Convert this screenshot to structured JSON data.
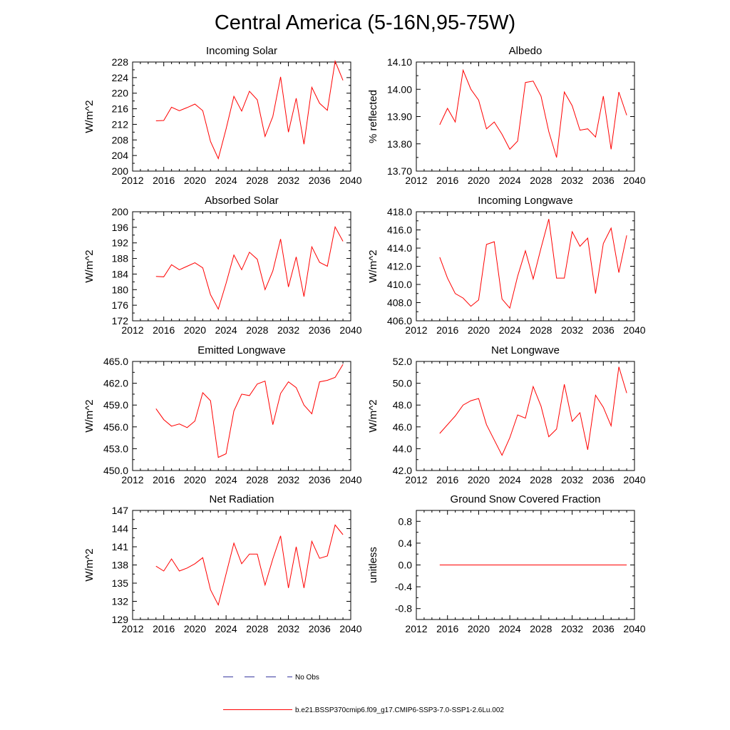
{
  "title": "Central America (5-16N,95-75W)",
  "colors": {
    "series": "#ff0000",
    "obs": "#3a3aa0",
    "axis": "#000000"
  },
  "legend": {
    "obs_label": "No Obs",
    "model_label": "b.e21.BSSP370cmip6.f09_g17.CMIP6-SSP3-7.0-SSP1-2.6Lu.002"
  },
  "chart_data": [
    {
      "id": "incoming-solar",
      "type": "line",
      "title": "Incoming Solar",
      "ylabel": "W/m^2",
      "xlim": [
        2012,
        2040
      ],
      "ylim": [
        200,
        228
      ],
      "xticks": [
        2012,
        2016,
        2020,
        2024,
        2028,
        2032,
        2036,
        2040
      ],
      "xtick_labels": [
        "2012",
        "2016",
        "2020",
        "2024",
        "2028",
        "2032",
        "2036",
        "2040"
      ],
      "yticks": [
        200,
        204,
        208,
        212,
        216,
        220,
        224,
        228
      ],
      "ytick_labels": [
        "200",
        "204",
        "208",
        "212",
        "216",
        "220",
        "224",
        "228"
      ],
      "x": [
        2015,
        2016,
        2017,
        2018,
        2019,
        2020,
        2021,
        2022,
        2023,
        2024,
        2025,
        2026,
        2027,
        2028,
        2029,
        2030,
        2031,
        2032,
        2033,
        2034,
        2035,
        2036,
        2037,
        2038,
        2039
      ],
      "values": [
        212.9,
        213.0,
        216.4,
        215.5,
        216.3,
        217.2,
        215.5,
        207.6,
        203.2,
        210.8,
        219.2,
        215.4,
        220.5,
        218.3,
        208.9,
        214.0,
        224.2,
        210.0,
        218.7,
        206.9,
        221.5,
        217.4,
        215.6,
        228.2,
        223.3
      ]
    },
    {
      "id": "albedo",
      "type": "line",
      "title": "Albedo",
      "ylabel": "% reflected",
      "xlim": [
        2012,
        2040
      ],
      "ylim": [
        13.7,
        14.1
      ],
      "xticks": [
        2012,
        2016,
        2020,
        2024,
        2028,
        2032,
        2036,
        2040
      ],
      "xtick_labels": [
        "2012",
        "2016",
        "2020",
        "2024",
        "2028",
        "2032",
        "2036",
        "2040"
      ],
      "yticks": [
        13.7,
        13.8,
        13.9,
        14.0,
        14.1
      ],
      "ytick_labels": [
        "13.70",
        "13.80",
        "13.90",
        "14.00",
        "14.10"
      ],
      "x": [
        2015,
        2016,
        2017,
        2018,
        2019,
        2020,
        2021,
        2022,
        2023,
        2024,
        2025,
        2026,
        2027,
        2028,
        2029,
        2030,
        2031,
        2032,
        2033,
        2034,
        2035,
        2036,
        2037,
        2038,
        2039
      ],
      "values": [
        13.87,
        13.93,
        13.88,
        14.07,
        14.0,
        13.96,
        13.855,
        13.88,
        13.835,
        13.78,
        13.81,
        14.025,
        14.03,
        13.975,
        13.845,
        13.75,
        13.99,
        13.94,
        13.85,
        13.855,
        13.825,
        13.975,
        13.78,
        13.99,
        13.905
      ]
    },
    {
      "id": "absorbed-solar",
      "type": "line",
      "title": "Absorbed Solar",
      "ylabel": "W/m^2",
      "xlim": [
        2012,
        2040
      ],
      "ylim": [
        172,
        200
      ],
      "xticks": [
        2012,
        2016,
        2020,
        2024,
        2028,
        2032,
        2036,
        2040
      ],
      "xtick_labels": [
        "2012",
        "2016",
        "2020",
        "2024",
        "2028",
        "2032",
        "2036",
        "2040"
      ],
      "yticks": [
        172,
        176,
        180,
        184,
        188,
        192,
        196,
        200
      ],
      "ytick_labels": [
        "172",
        "176",
        "180",
        "184",
        "188",
        "192",
        "196",
        "200"
      ],
      "x": [
        2015,
        2016,
        2017,
        2018,
        2019,
        2020,
        2021,
        2022,
        2023,
        2024,
        2025,
        2026,
        2027,
        2028,
        2029,
        2030,
        2031,
        2032,
        2033,
        2034,
        2035,
        2036,
        2037,
        2038,
        2039
      ],
      "values": [
        183.4,
        183.3,
        186.4,
        185.1,
        186.0,
        186.9,
        185.6,
        178.7,
        175.0,
        181.6,
        188.9,
        185.1,
        189.6,
        187.8,
        180.0,
        184.8,
        193.0,
        180.7,
        188.4,
        178.2,
        191.0,
        187.0,
        186.0,
        196.1,
        192.4
      ]
    },
    {
      "id": "incoming-longwave",
      "type": "line",
      "title": "Incoming Longwave",
      "ylabel": "W/m^2",
      "xlim": [
        2012,
        2040
      ],
      "ylim": [
        406,
        418
      ],
      "xticks": [
        2012,
        2016,
        2020,
        2024,
        2028,
        2032,
        2036,
        2040
      ],
      "xtick_labels": [
        "2012",
        "2016",
        "2020",
        "2024",
        "2028",
        "2032",
        "2036",
        "2040"
      ],
      "yticks": [
        406,
        408,
        410,
        412,
        414,
        416,
        418
      ],
      "ytick_labels": [
        "406.0",
        "408.0",
        "410.0",
        "412.0",
        "414.0",
        "416.0",
        "418.0"
      ],
      "x": [
        2015,
        2016,
        2017,
        2018,
        2019,
        2020,
        2021,
        2022,
        2023,
        2024,
        2025,
        2026,
        2027,
        2028,
        2029,
        2030,
        2031,
        2032,
        2033,
        2034,
        2035,
        2036,
        2037,
        2038,
        2039
      ],
      "values": [
        413.0,
        410.7,
        409.0,
        408.5,
        407.6,
        408.3,
        414.4,
        414.7,
        408.4,
        407.4,
        410.9,
        413.7,
        410.6,
        414.0,
        417.2,
        410.7,
        410.7,
        415.8,
        414.2,
        415.1,
        409.0,
        414.5,
        416.2,
        411.3,
        415.4
      ]
    },
    {
      "id": "emitted-longwave",
      "type": "line",
      "title": "Emitted Longwave",
      "ylabel": "W/m^2",
      "xlim": [
        2012,
        2040
      ],
      "ylim": [
        450,
        465
      ],
      "xticks": [
        2012,
        2016,
        2020,
        2024,
        2028,
        2032,
        2036,
        2040
      ],
      "xtick_labels": [
        "2012",
        "2016",
        "2020",
        "2024",
        "2028",
        "2032",
        "2036",
        "2040"
      ],
      "yticks": [
        450,
        453,
        456,
        459,
        462,
        465
      ],
      "ytick_labels": [
        "450.0",
        "453.0",
        "456.0",
        "459.0",
        "462.0",
        "465.0"
      ],
      "x": [
        2015,
        2016,
        2017,
        2018,
        2019,
        2020,
        2021,
        2022,
        2023,
        2024,
        2025,
        2026,
        2027,
        2028,
        2029,
        2030,
        2031,
        2032,
        2033,
        2034,
        2035,
        2036,
        2037,
        2038,
        2039
      ],
      "values": [
        458.5,
        457.0,
        456.1,
        456.4,
        455.9,
        456.8,
        460.7,
        459.6,
        451.8,
        452.3,
        458.2,
        460.5,
        460.3,
        461.9,
        462.3,
        456.3,
        460.6,
        462.2,
        461.4,
        459.0,
        457.8,
        462.2,
        462.4,
        462.8,
        464.6
      ]
    },
    {
      "id": "net-longwave",
      "type": "line",
      "title": "Net Longwave",
      "ylabel": "W/m^2",
      "xlim": [
        2012,
        2040
      ],
      "ylim": [
        42,
        52
      ],
      "xticks": [
        2012,
        2016,
        2020,
        2024,
        2028,
        2032,
        2036,
        2040
      ],
      "xtick_labels": [
        "2012",
        "2016",
        "2020",
        "2024",
        "2028",
        "2032",
        "2036",
        "2040"
      ],
      "yticks": [
        42,
        44,
        46,
        48,
        50,
        52
      ],
      "ytick_labels": [
        "42.0",
        "44.0",
        "46.0",
        "48.0",
        "50.0",
        "52.0"
      ],
      "x": [
        2015,
        2017,
        2018,
        2019,
        2020,
        2021,
        2022,
        2023,
        2024,
        2025,
        2026,
        2027,
        2028,
        2029,
        2030,
        2031,
        2032,
        2033,
        2034,
        2035,
        2036,
        2037,
        2038,
        2039
      ],
      "values": [
        45.4,
        47.0,
        48.0,
        48.4,
        48.6,
        46.2,
        44.8,
        43.4,
        45.0,
        47.1,
        46.8,
        49.7,
        47.9,
        45.1,
        45.8,
        49.9,
        46.5,
        47.3,
        43.9,
        48.9,
        47.8,
        46.1,
        51.5,
        49.1
      ]
    },
    {
      "id": "net-radiation",
      "type": "line",
      "title": "Net Radiation",
      "ylabel": "W/m^2",
      "xlim": [
        2012,
        2040
      ],
      "ylim": [
        129,
        147
      ],
      "xticks": [
        2012,
        2016,
        2020,
        2024,
        2028,
        2032,
        2036,
        2040
      ],
      "xtick_labels": [
        "2012",
        "2016",
        "2020",
        "2024",
        "2028",
        "2032",
        "2036",
        "2040"
      ],
      "yticks": [
        129,
        132,
        135,
        138,
        141,
        144,
        147
      ],
      "ytick_labels": [
        "129",
        "132",
        "135",
        "138",
        "141",
        "144",
        "147"
      ],
      "x": [
        2015,
        2016,
        2017,
        2018,
        2019,
        2020,
        2021,
        2022,
        2023,
        2024,
        2025,
        2026,
        2027,
        2028,
        2029,
        2030,
        2031,
        2032,
        2033,
        2034,
        2035,
        2036,
        2037,
        2038,
        2039
      ],
      "values": [
        137.8,
        137.0,
        139.0,
        137.0,
        137.5,
        138.2,
        139.2,
        133.9,
        131.4,
        136.5,
        141.6,
        138.2,
        139.8,
        139.8,
        134.7,
        139.0,
        142.8,
        134.2,
        141.0,
        134.2,
        141.9,
        139.1,
        139.5,
        144.6,
        143.0
      ]
    },
    {
      "id": "ground-snow",
      "type": "line",
      "title": "Ground Snow Covered Fraction",
      "ylabel": "unitless",
      "xlim": [
        2012,
        2040
      ],
      "ylim": [
        -1.0,
        1.0
      ],
      "xticks": [
        2012,
        2016,
        2020,
        2024,
        2028,
        2032,
        2036,
        2040
      ],
      "xtick_labels": [
        "2012",
        "2016",
        "2020",
        "2024",
        "2028",
        "2032",
        "2036",
        "2040"
      ],
      "yticks": [
        -0.8,
        -0.4,
        0.0,
        0.4,
        0.8
      ],
      "ytick_labels": [
        "-0.8",
        "-0.4",
        "0.0",
        "0.4",
        "0.8"
      ],
      "x": [
        2015,
        2039
      ],
      "values": [
        0.0,
        0.0
      ]
    }
  ]
}
